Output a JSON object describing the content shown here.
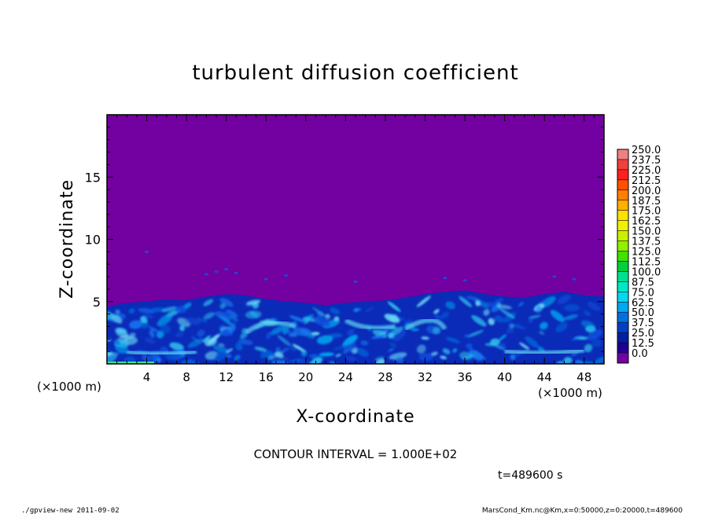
{
  "chart_data": {
    "type": "heatmap",
    "title": "turbulent diffusion coefficient",
    "xlabel": "X-coordinate",
    "ylabel": "Z-coordinate",
    "x_unit_left": "(×1000 m)",
    "x_unit_right": "(×1000 m)",
    "xlim": [
      0,
      50
    ],
    "ylim": [
      0,
      20
    ],
    "x_ticks": [
      4,
      8,
      12,
      16,
      20,
      24,
      28,
      32,
      36,
      40,
      44,
      48
    ],
    "x_tick_labels": [
      "4",
      "8",
      "12",
      "16",
      "20",
      "24",
      "28",
      "32",
      "36",
      "40",
      "44",
      "48"
    ],
    "y_ticks": [
      5,
      10,
      15
    ],
    "y_tick_labels": [
      "5",
      "10",
      "15"
    ],
    "background_color": "#7300a0",
    "contour_interval_label": "CONTOUR INTERVAL = 1.000E+02",
    "time_label": "t=489600 s",
    "footer_left": "./gpview-new  2011-09-02",
    "footer_right": "MarsCond_Km.nc@Km,x=0:50000,z=0:20000,t=489600",
    "colorbar": {
      "labels": [
        "250.0",
        "237.5",
        "225.0",
        "212.5",
        "200.0",
        "187.5",
        "175.0",
        "162.5",
        "150.0",
        "137.5",
        "125.0",
        "112.5",
        "100.0",
        "87.5",
        "75.0",
        "62.5",
        "50.0",
        "37.5",
        "25.0",
        "12.5",
        "0.0"
      ],
      "colors": [
        "#f08080",
        "#f04040",
        "#ff2020",
        "#ff5000",
        "#ff8000",
        "#ffb000",
        "#ffe000",
        "#f0f000",
        "#c8f000",
        "#90f000",
        "#40e000",
        "#00d040",
        "#00e090",
        "#00e8c8",
        "#00d8f0",
        "#00a8f0",
        "#0070e0",
        "#0040c8",
        "#0020a0",
        "#200090"
      ],
      "bottom_color": "#7300a0"
    },
    "field_description_points": {
      "boundary_layer_top": [
        [
          0,
          4.6
        ],
        [
          2,
          4.9
        ],
        [
          4,
          5.0
        ],
        [
          6,
          5.2
        ],
        [
          8,
          5.1
        ],
        [
          10,
          5.4
        ],
        [
          12,
          5.6
        ],
        [
          14,
          5.5
        ],
        [
          16,
          5.2
        ],
        [
          18,
          5.0
        ],
        [
          20,
          4.9
        ],
        [
          22,
          4.7
        ],
        [
          24,
          4.9
        ],
        [
          26,
          5.0
        ],
        [
          28,
          5.1
        ],
        [
          30,
          5.3
        ],
        [
          32,
          5.6
        ],
        [
          34,
          5.8
        ],
        [
          36,
          5.9
        ],
        [
          38,
          5.6
        ],
        [
          40,
          5.4
        ],
        [
          42,
          5.3
        ],
        [
          44,
          5.6
        ],
        [
          46,
          5.8
        ],
        [
          48,
          5.5
        ],
        [
          50,
          5.4
        ]
      ]
    }
  }
}
